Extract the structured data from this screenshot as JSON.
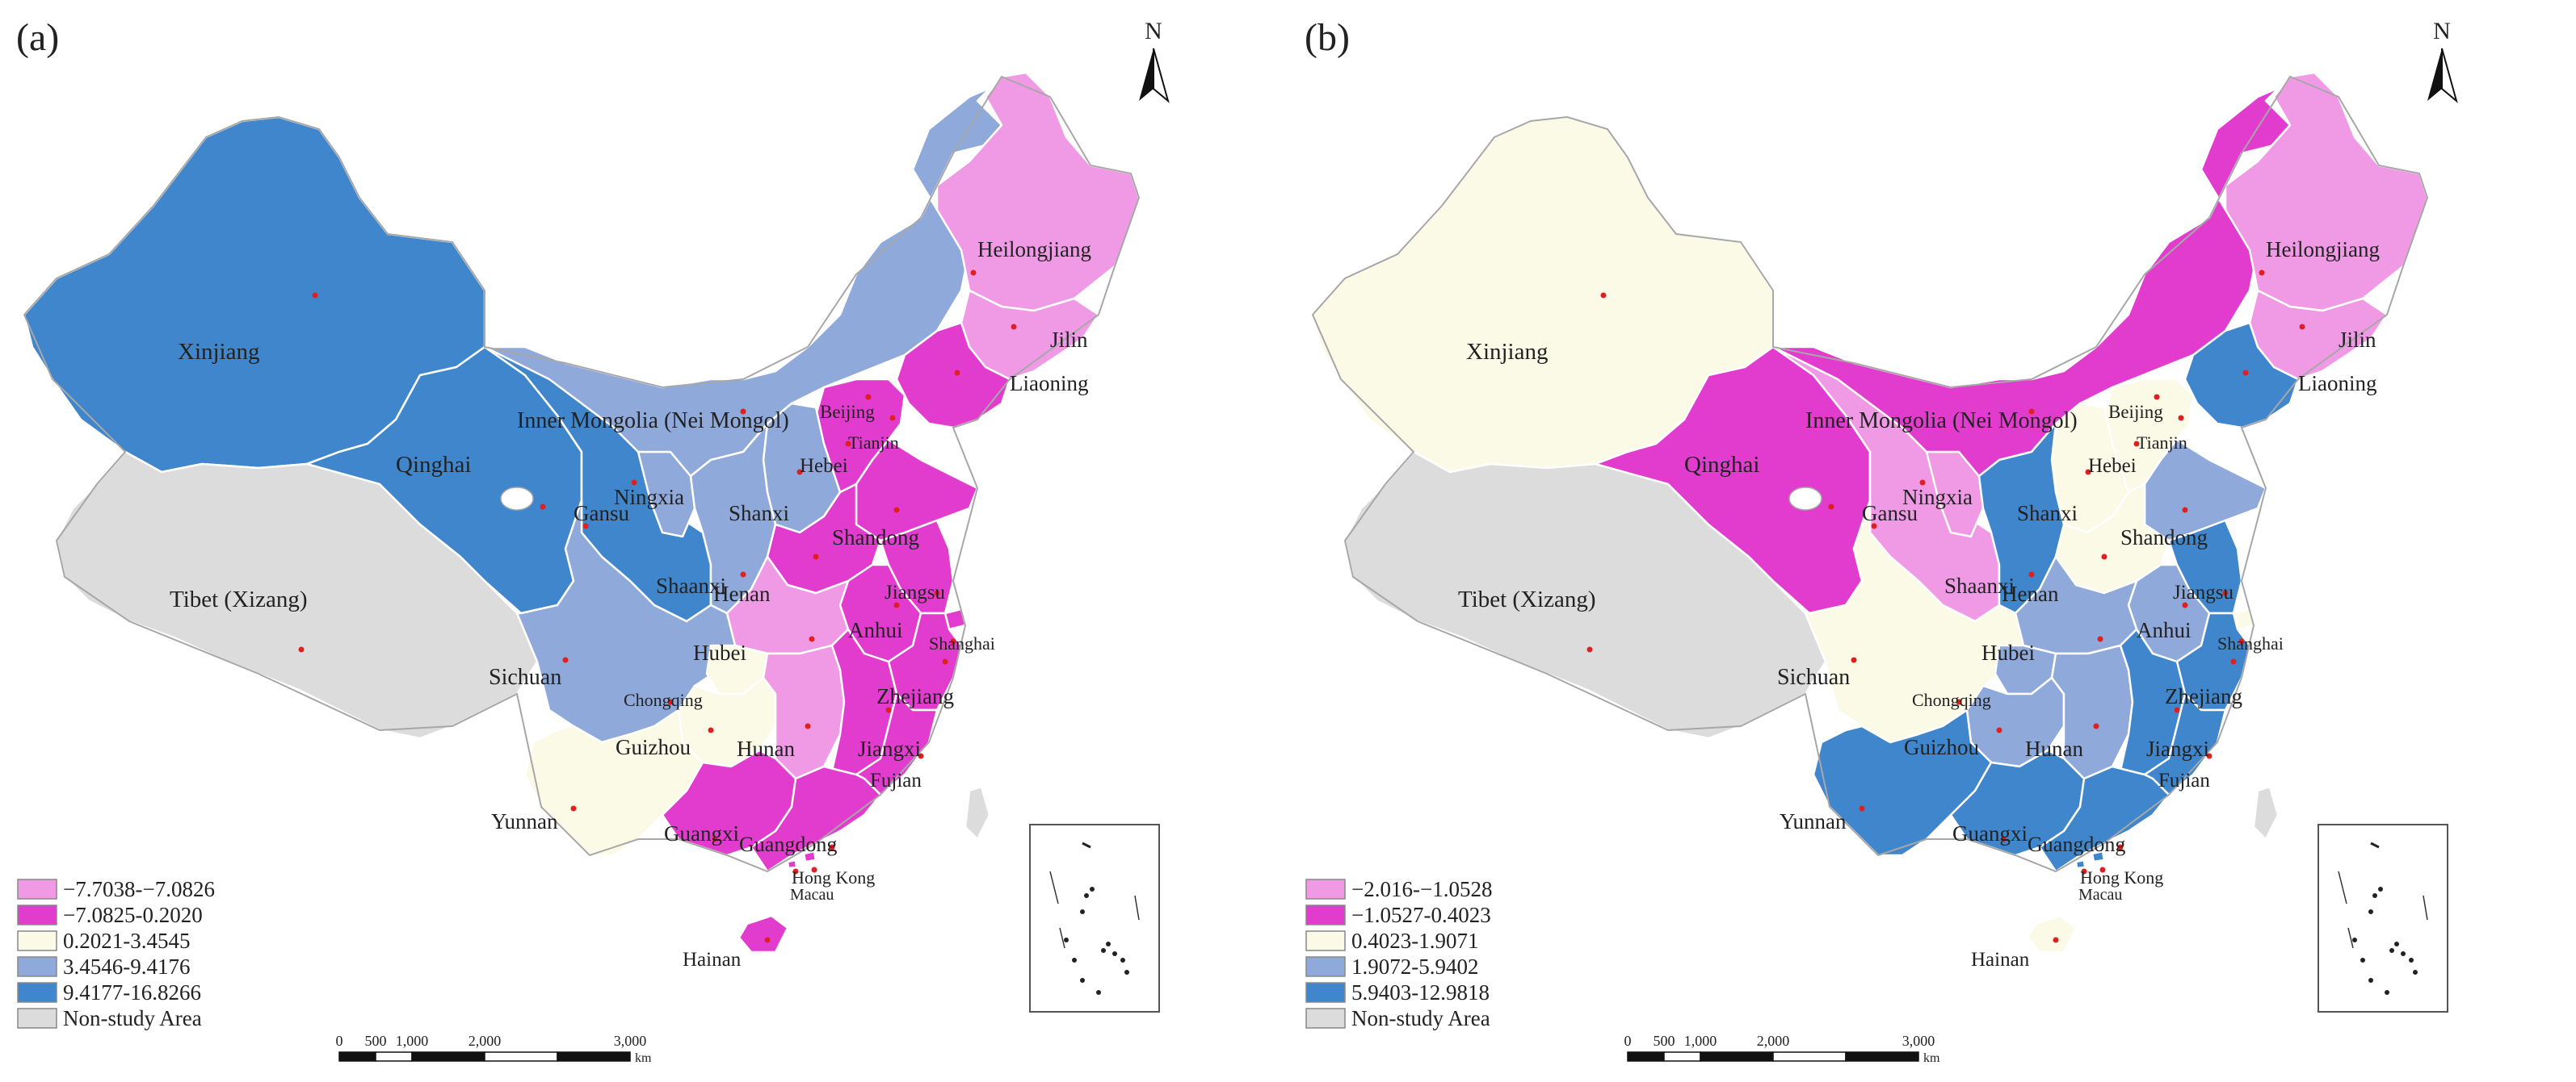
{
  "colors": {
    "class1": "#f09ae6",
    "class2": "#e23ccf",
    "class3": "#fafae6",
    "class4": "#8ea9da",
    "class5": "#3f86cc",
    "nonstudy": "#dcdcdc",
    "border": "#ffffff",
    "outline": "#a7a7a7",
    "centroid": "#e02020"
  },
  "north": "N",
  "scalebar": {
    "ticks": [
      "0",
      "500",
      "1,000",
      "2,000",
      "3,000"
    ],
    "unit": "km"
  },
  "panels": [
    {
      "id": "a",
      "label": "(a)",
      "legend": [
        {
          "range": "−7.7038-−7.0826",
          "cls": "class1"
        },
        {
          "range": "−7.0825-0.2020",
          "cls": "class2"
        },
        {
          "range": "0.2021-3.4545",
          "cls": "class3"
        },
        {
          "range": "3.4546-9.4176",
          "cls": "class4"
        },
        {
          "range": "9.4177-16.8266",
          "cls": "class5"
        },
        {
          "range": "Non-study Area",
          "cls": "nonstudy"
        }
      ],
      "provinces": {
        "xinjiang": {
          "name": "Xinjiang",
          "cls": "class5"
        },
        "tibet": {
          "name": "Tibet (Xizang)",
          "cls": "nonstudy"
        },
        "qinghai": {
          "name": "Qinghai",
          "cls": "class5"
        },
        "gansu": {
          "name": "Gansu",
          "cls": "class5"
        },
        "ningxia": {
          "name": "Ningxia",
          "cls": "class4"
        },
        "neimongol": {
          "name": "Inner Mongolia (Nei Mongol)",
          "cls": "class4"
        },
        "heilongjiang": {
          "name": "Heilongjiang",
          "cls": "class1"
        },
        "jilin": {
          "name": "Jilin",
          "cls": "class1"
        },
        "liaoning": {
          "name": "Liaoning",
          "cls": "class2"
        },
        "beijing": {
          "name": "Beijing",
          "cls": "class2"
        },
        "tianjin": {
          "name": "Tianjin",
          "cls": "class2"
        },
        "hebei": {
          "name": "Hebei",
          "cls": "class2"
        },
        "shanxi": {
          "name": "Shanxi",
          "cls": "class4"
        },
        "shaanxi": {
          "name": "Shaanxi",
          "cls": "class4"
        },
        "shandong": {
          "name": "Shandong",
          "cls": "class2"
        },
        "henan": {
          "name": "Henan",
          "cls": "class2"
        },
        "jiangsu": {
          "name": "Jiangsu",
          "cls": "class2"
        },
        "anhui": {
          "name": "Anhui",
          "cls": "class2"
        },
        "shanghai": {
          "name": "Shanghai",
          "cls": "class2"
        },
        "hubei": {
          "name": "Hubei",
          "cls": "class1"
        },
        "zhejiang": {
          "name": "Zhejiang",
          "cls": "class2"
        },
        "sichuan": {
          "name": "Sichuan",
          "cls": "class4"
        },
        "chongqing": {
          "name": "Chongqing",
          "cls": "class3"
        },
        "guizhou": {
          "name": "Guizhou",
          "cls": "class3"
        },
        "hunan": {
          "name": "Hunan",
          "cls": "class1"
        },
        "jiangxi": {
          "name": "Jiangxi",
          "cls": "class2"
        },
        "fujian": {
          "name": "Fujian",
          "cls": "class2"
        },
        "yunnan": {
          "name": "Yunnan",
          "cls": "class3"
        },
        "guangxi": {
          "name": "Guangxi",
          "cls": "class2"
        },
        "guangdong": {
          "name": "Guangdong",
          "cls": "class2"
        },
        "hongkong": {
          "name": "Hong Kong",
          "cls": "class2"
        },
        "macau": {
          "name": "Macau",
          "cls": "class2"
        },
        "hainan": {
          "name": "Hainan",
          "cls": "class2"
        },
        "taiwan": {
          "name": "",
          "cls": "nonstudy"
        },
        "inset": {
          "name": "",
          "cls": "class2"
        }
      }
    },
    {
      "id": "b",
      "label": "(b)",
      "legend": [
        {
          "range": "−2.016-−1.0528",
          "cls": "class1"
        },
        {
          "range": "−1.0527-0.4023",
          "cls": "class2"
        },
        {
          "range": "0.4023-1.9071",
          "cls": "class3"
        },
        {
          "range": "1.9072-5.9402",
          "cls": "class4"
        },
        {
          "range": "5.9403-12.9818",
          "cls": "class5"
        },
        {
          "range": "Non-study Area",
          "cls": "nonstudy"
        }
      ],
      "provinces": {
        "xinjiang": {
          "name": "Xinjiang",
          "cls": "class3"
        },
        "tibet": {
          "name": "Tibet (Xizang)",
          "cls": "nonstudy"
        },
        "qinghai": {
          "name": "Qinghai",
          "cls": "class2"
        },
        "gansu": {
          "name": "Gansu",
          "cls": "class1"
        },
        "ningxia": {
          "name": "Ningxia",
          "cls": "class1"
        },
        "neimongol": {
          "name": "Inner Mongolia (Nei Mongol)",
          "cls": "class2"
        },
        "heilongjiang": {
          "name": "Heilongjiang",
          "cls": "class1"
        },
        "jilin": {
          "name": "Jilin",
          "cls": "class1"
        },
        "liaoning": {
          "name": "Liaoning",
          "cls": "class5"
        },
        "beijing": {
          "name": "Beijing",
          "cls": "class3"
        },
        "tianjin": {
          "name": "Tianjin",
          "cls": "class3"
        },
        "hebei": {
          "name": "Hebei",
          "cls": "class3"
        },
        "shanxi": {
          "name": "Shanxi",
          "cls": "class3"
        },
        "shaanxi": {
          "name": "Shaanxi",
          "cls": "class5"
        },
        "shandong": {
          "name": "Shandong",
          "cls": "class4"
        },
        "henan": {
          "name": "Henan",
          "cls": "class3"
        },
        "jiangsu": {
          "name": "Jiangsu",
          "cls": "class5"
        },
        "anhui": {
          "name": "Anhui",
          "cls": "class4"
        },
        "shanghai": {
          "name": "Shanghai",
          "cls": "class3"
        },
        "hubei": {
          "name": "Hubei",
          "cls": "class4"
        },
        "zhejiang": {
          "name": "Zhejiang",
          "cls": "class5"
        },
        "sichuan": {
          "name": "Sichuan",
          "cls": "class3"
        },
        "chongqing": {
          "name": "Chongqing",
          "cls": "class4"
        },
        "guizhou": {
          "name": "Guizhou",
          "cls": "class4"
        },
        "hunan": {
          "name": "Hunan",
          "cls": "class4"
        },
        "jiangxi": {
          "name": "Jiangxi",
          "cls": "class5"
        },
        "fujian": {
          "name": "Fujian",
          "cls": "class5"
        },
        "yunnan": {
          "name": "Yunnan",
          "cls": "class5"
        },
        "guangxi": {
          "name": "Guangxi",
          "cls": "class5"
        },
        "guangdong": {
          "name": "Guangdong",
          "cls": "class5"
        },
        "hongkong": {
          "name": "Hong Kong",
          "cls": "class5"
        },
        "macau": {
          "name": "Macau",
          "cls": "class5"
        },
        "hainan": {
          "name": "Hainan",
          "cls": "class3"
        },
        "taiwan": {
          "name": "",
          "cls": "nonstudy"
        },
        "inset": {
          "name": "",
          "cls": "class5"
        }
      }
    }
  ]
}
